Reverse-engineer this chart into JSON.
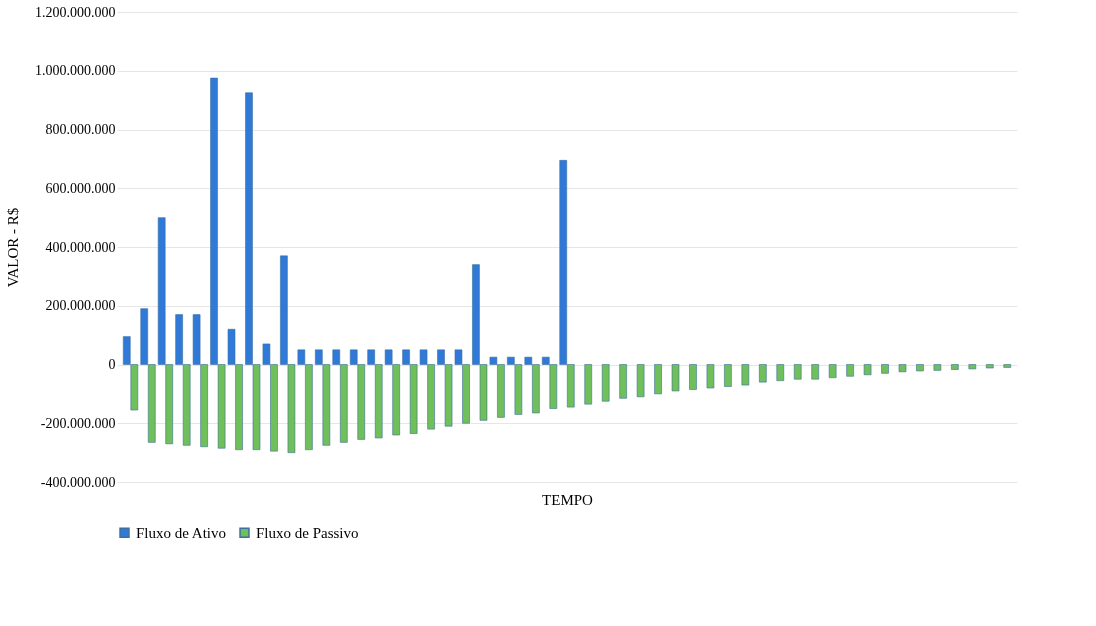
{
  "chart_data": {
    "type": "bar",
    "xlabel": "TEMPO",
    "ylabel": "VALOR - R$",
    "categories": [
      null,
      null,
      null,
      null,
      null,
      null,
      null,
      null,
      null,
      null,
      null,
      null,
      null,
      null,
      null,
      null,
      null,
      null,
      null,
      null,
      null,
      null,
      null,
      null,
      null,
      null,
      null,
      null,
      null,
      null,
      null,
      null,
      null,
      null,
      null,
      null,
      null,
      null,
      null,
      null,
      null,
      null,
      null,
      null,
      null,
      null,
      null,
      null,
      null,
      null,
      null
    ],
    "series": [
      {
        "name": "Fluxo de Ativo",
        "color": "#2f7ad8",
        "values": [
          95000000,
          190000000,
          500000000,
          170000000,
          170000000,
          975000000,
          120000000,
          925000000,
          70000000,
          370000000,
          50000000,
          50000000,
          50000000,
          50000000,
          50000000,
          50000000,
          50000000,
          50000000,
          50000000,
          50000000,
          340000000,
          25000000,
          25000000,
          25000000,
          25000000,
          695000000,
          null,
          null,
          null,
          null,
          null,
          null,
          null,
          null,
          null,
          null,
          null,
          null,
          null,
          null,
          null,
          null,
          null,
          null,
          null,
          null,
          null,
          null,
          null,
          null,
          null
        ]
      },
      {
        "name": "Fluxo de Passivo",
        "color": "#6fbf5a",
        "values": [
          -155000000,
          -265000000,
          -270000000,
          -275000000,
          -280000000,
          -285000000,
          -290000000,
          -290000000,
          -295000000,
          -300000000,
          -290000000,
          -275000000,
          -265000000,
          -255000000,
          -250000000,
          -240000000,
          -235000000,
          -220000000,
          -210000000,
          -200000000,
          -190000000,
          -180000000,
          -170000000,
          -165000000,
          -150000000,
          -145000000,
          -135000000,
          -125000000,
          -115000000,
          -110000000,
          -100000000,
          -90000000,
          -85000000,
          -80000000,
          -75000000,
          -70000000,
          -60000000,
          -55000000,
          -50000000,
          -50000000,
          -45000000,
          -40000000,
          -35000000,
          -30000000,
          -25000000,
          -22000000,
          -20000000,
          -17000000,
          -15000000,
          -12000000,
          -10000000
        ]
      }
    ],
    "ylim": [
      -400000000,
      1200000000
    ],
    "yticks": [
      {
        "value": -400000000,
        "label": "-400.000.000"
      },
      {
        "value": -200000000,
        "label": "-200.000.000"
      },
      {
        "value": 0,
        "label": "0"
      },
      {
        "value": 200000000,
        "label": "200.000.000"
      },
      {
        "value": 400000000,
        "label": "400.000.000"
      },
      {
        "value": 600000000,
        "label": "600.000.000"
      },
      {
        "value": 800000000,
        "label": "800.000.000"
      },
      {
        "value": 1000000000,
        "label": "1.000.000.000"
      },
      {
        "value": 1200000000,
        "label": "1.200.000.000"
      }
    ],
    "grid": "y",
    "legend": "bottom",
    "tick_labels": "y"
  }
}
